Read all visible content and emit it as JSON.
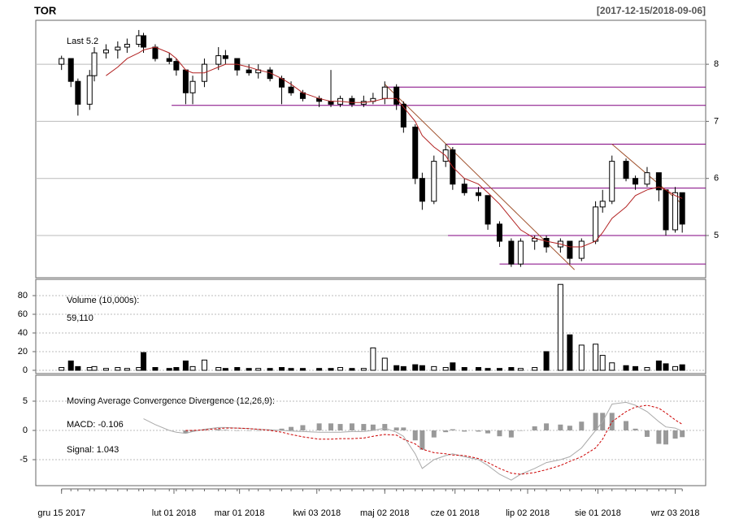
{
  "chart_data": [
    {
      "type": "candlestick",
      "title": "TOR",
      "subtitle": "[2017-12-15/2018-09-06]",
      "annotation": "Last 5.2",
      "x": [
        "2017-12-15",
        "2017-12-19",
        "2017-12-22",
        "2017-12-27",
        "2017-12-29",
        "2018-01-03",
        "2018-01-08",
        "2018-01-12",
        "2018-01-17",
        "2018-01-19",
        "2018-01-24",
        "2018-01-30",
        "2018-02-02",
        "2018-02-06",
        "2018-02-09",
        "2018-02-14",
        "2018-02-20",
        "2018-02-23",
        "2018-02-28",
        "2018-03-05",
        "2018-03-09",
        "2018-03-14",
        "2018-03-19",
        "2018-03-23",
        "2018-03-28",
        "2018-04-04",
        "2018-04-09",
        "2018-04-13",
        "2018-04-18",
        "2018-04-23",
        "2018-04-27",
        "2018-05-02",
        "2018-05-07",
        "2018-05-10",
        "2018-05-15",
        "2018-05-18",
        "2018-05-23",
        "2018-05-28",
        "2018-05-31",
        "2018-06-05",
        "2018-06-11",
        "2018-06-15",
        "2018-06-20",
        "2018-06-25",
        "2018-06-29",
        "2018-07-05",
        "2018-07-10",
        "2018-07-16",
        "2018-07-20",
        "2018-07-25",
        "2018-07-31",
        "2018-08-03",
        "2018-08-07",
        "2018-08-13",
        "2018-08-17",
        "2018-08-22",
        "2018-08-27",
        "2018-08-30",
        "2018-09-03",
        "2018-09-06"
      ],
      "open": [
        8.0,
        8.1,
        7.7,
        7.3,
        7.8,
        8.2,
        8.25,
        8.3,
        8.35,
        8.5,
        8.3,
        8.1,
        8.05,
        7.9,
        7.5,
        7.7,
        8.0,
        8.15,
        8.1,
        7.9,
        7.85,
        7.9,
        7.75,
        7.6,
        7.5,
        7.4,
        7.35,
        7.3,
        7.4,
        7.3,
        7.35,
        7.4,
        7.6,
        7.3,
        6.9,
        6.0,
        5.6,
        6.3,
        6.5,
        5.9,
        5.75,
        5.7,
        5.2,
        4.9,
        4.5,
        4.9,
        4.95,
        4.8,
        4.9,
        4.6,
        4.9,
        5.5,
        5.6,
        6.3,
        6.0,
        5.9,
        6.1,
        5.8,
        5.1,
        5.75
      ],
      "high": [
        8.15,
        8.1,
        7.75,
        7.9,
        8.3,
        8.35,
        8.4,
        8.45,
        8.6,
        8.55,
        8.35,
        8.2,
        8.1,
        7.9,
        7.8,
        8.1,
        8.3,
        8.25,
        8.1,
        8.0,
        8.0,
        7.95,
        7.8,
        7.7,
        7.55,
        7.45,
        7.9,
        7.45,
        7.45,
        7.45,
        7.5,
        7.7,
        7.65,
        7.35,
        6.95,
        6.1,
        6.4,
        6.6,
        6.55,
        6.0,
        5.85,
        5.7,
        5.25,
        4.95,
        4.95,
        5.0,
        5.0,
        4.95,
        4.9,
        4.95,
        5.6,
        5.8,
        6.4,
        6.35,
        6.05,
        6.2,
        6.1,
        5.8,
        5.85,
        5.75
      ],
      "low": [
        7.9,
        7.6,
        7.1,
        7.2,
        7.7,
        8.1,
        8.1,
        8.2,
        8.3,
        8.2,
        8.05,
        8.0,
        7.8,
        7.3,
        7.3,
        7.6,
        7.9,
        8.0,
        7.8,
        7.8,
        7.75,
        7.7,
        7.3,
        7.45,
        7.35,
        7.25,
        7.25,
        7.25,
        7.25,
        7.25,
        7.3,
        7.3,
        7.2,
        6.8,
        5.9,
        5.45,
        5.55,
        6.2,
        5.8,
        5.7,
        5.6,
        5.1,
        4.8,
        4.45,
        4.45,
        4.75,
        4.7,
        4.7,
        4.5,
        4.55,
        4.85,
        5.4,
        5.55,
        5.95,
        5.8,
        5.85,
        5.6,
        5.0,
        5.05,
        5.05
      ],
      "close": [
        8.1,
        7.7,
        7.3,
        7.8,
        8.2,
        8.25,
        8.3,
        8.35,
        8.5,
        8.3,
        8.1,
        8.05,
        7.9,
        7.5,
        7.7,
        8.0,
        8.15,
        8.1,
        7.9,
        7.85,
        7.9,
        7.75,
        7.6,
        7.5,
        7.4,
        7.35,
        7.3,
        7.4,
        7.3,
        7.35,
        7.4,
        7.6,
        7.3,
        6.9,
        6.0,
        5.6,
        6.3,
        6.5,
        5.9,
        5.75,
        5.7,
        5.2,
        4.9,
        4.5,
        4.9,
        4.95,
        4.8,
        4.9,
        4.6,
        4.9,
        5.5,
        5.6,
        6.3,
        6.0,
        5.9,
        6.1,
        5.8,
        5.1,
        5.75,
        5.2
      ],
      "up_color": "#ffffff",
      "down_color": "#000000",
      "ma": {
        "color": "#b22222",
        "values": [
          null,
          null,
          null,
          null,
          null,
          7.8,
          7.95,
          8.1,
          8.2,
          8.25,
          8.3,
          8.2,
          8.1,
          7.9,
          7.85,
          7.85,
          7.95,
          8.0,
          8.0,
          7.95,
          7.9,
          7.85,
          7.75,
          7.65,
          7.5,
          7.4,
          7.35,
          7.35,
          7.33,
          7.33,
          7.35,
          7.4,
          7.4,
          7.25,
          7.0,
          6.75,
          6.55,
          6.4,
          6.2,
          6.0,
          5.9,
          5.75,
          5.55,
          5.3,
          5.1,
          4.95,
          4.9,
          4.85,
          4.8,
          4.8,
          4.9,
          5.05,
          5.3,
          5.5,
          5.7,
          5.8,
          5.85,
          5.8,
          5.7,
          5.65
        ]
      },
      "levels": {
        "color": "#800080",
        "values": [
          7.6,
          7.28,
          6.6,
          5.83,
          5.0,
          4.5
        ],
        "from": [
          "2018-05-02",
          "2018-01-31",
          "2018-05-28",
          "2018-06-05",
          "2018-05-29",
          "2018-06-20"
        ]
      },
      "trendlines": {
        "color": "#a0522d",
        "lines": [
          {
            "x": [
              "2018-05-02",
              "2018-07-22"
            ],
            "y": [
              7.65,
              4.4
            ]
          },
          {
            "x": [
              "2018-08-07",
              "2018-09-06"
            ],
            "y": [
              6.6,
              5.55
            ]
          }
        ]
      },
      "xlim": [
        "2017-12-04",
        "2018-09-16"
      ],
      "xticks": [
        {
          "value": "2017-12-15",
          "label": "gru 15 2017"
        },
        {
          "value": "2018-02-01",
          "label": "lut 01 2018"
        },
        {
          "value": "2018-03-01",
          "label": "mar 01 2018"
        },
        {
          "value": "2018-04-03",
          "label": "kwi 03 2018"
        },
        {
          "value": "2018-05-02",
          "label": "maj 02 2018"
        },
        {
          "value": "2018-06-01",
          "label": "cze 01 2018"
        },
        {
          "value": "2018-07-02",
          "label": "lip 02 2018"
        },
        {
          "value": "2018-08-01",
          "label": "sie 01 2018"
        },
        {
          "value": "2018-09-03",
          "label": "wrz 03 2018"
        }
      ],
      "ylim": [
        4.26,
        8.77
      ],
      "yticks": [
        5,
        6,
        7,
        8
      ],
      "grid": true
    },
    {
      "type": "bar",
      "title": "Volume (10,000s):",
      "annotation": "59,110",
      "values": [
        3,
        10,
        4,
        3,
        4,
        2,
        3,
        2,
        3,
        19,
        3,
        2,
        3,
        10,
        4,
        11,
        3,
        2,
        3,
        2,
        2,
        2,
        3,
        2,
        2,
        2,
        2,
        3,
        2,
        2,
        24,
        13,
        5,
        4,
        6,
        5,
        4,
        3,
        8,
        3,
        3,
        2,
        2,
        3,
        2,
        3,
        20,
        92,
        38,
        27,
        28,
        16,
        8,
        5,
        4,
        3,
        10,
        7,
        4,
        5.911
      ],
      "ylim": [
        -3.5,
        97.4
      ],
      "yticks": [
        0,
        20,
        40,
        60,
        80
      ],
      "grid": true
    },
    {
      "type": "line",
      "title": "Moving Average Convergence Divergence (12,26,9):",
      "series": [
        {
          "name": "MACD: -0.106",
          "color": "#aaaaaa",
          "values": [
            null,
            null,
            null,
            null,
            null,
            null,
            null,
            null,
            null,
            2.0,
            1.0,
            0.0,
            -0.3,
            -0.5,
            -0.2,
            0.2,
            0.5,
            0.5,
            0.4,
            0.3,
            0.2,
            0.1,
            0.0,
            -0.1,
            -0.2,
            -0.3,
            -0.3,
            -0.3,
            -0.2,
            -0.2,
            0.0,
            0.4,
            -0.3,
            -1.0,
            -4.0,
            -6.5,
            -5.0,
            -4.3,
            -4.0,
            -4.5,
            -5.0,
            -6.0,
            -7.5,
            -8.5,
            -7.5,
            -6.5,
            -5.5,
            -5.0,
            -4.5,
            -3.0,
            0.0,
            1.5,
            4.5,
            4.8,
            4.3,
            3.2,
            1.5,
            0.6,
            0.4,
            -0.106
          ]
        },
        {
          "name": "Signal: 1.043",
          "color": "#cc0000",
          "dashed": true,
          "values": [
            null,
            null,
            null,
            null,
            null,
            null,
            null,
            null,
            null,
            null,
            null,
            null,
            null,
            0.0,
            0.0,
            0.1,
            0.3,
            0.4,
            0.4,
            0.3,
            0.2,
            0.0,
            -0.3,
            -0.7,
            -1.1,
            -1.5,
            -1.5,
            -1.4,
            -1.4,
            -1.3,
            -1.0,
            -0.7,
            -0.8,
            -1.5,
            -2.3,
            -3.2,
            -3.8,
            -4.0,
            -4.2,
            -4.3,
            -4.8,
            -5.5,
            -6.5,
            -7.3,
            -7.5,
            -7.2,
            -6.7,
            -6.0,
            -5.3,
            -4.5,
            -3.0,
            -1.5,
            1.5,
            3.2,
            4.0,
            4.3,
            3.8,
            3.0,
            1.8,
            1.043
          ]
        }
      ],
      "histogram": {
        "color": "#999999",
        "values": [
          null,
          null,
          null,
          null,
          null,
          null,
          null,
          null,
          null,
          null,
          null,
          null,
          null,
          -0.5,
          -0.2,
          0.1,
          0.2,
          0.1,
          0.0,
          0.0,
          0.0,
          0.1,
          0.3,
          0.6,
          0.9,
          1.2,
          1.2,
          1.1,
          1.2,
          1.1,
          1.0,
          1.1,
          0.5,
          0.5,
          -1.7,
          -3.3,
          -1.2,
          -0.3,
          0.2,
          -0.2,
          -0.2,
          -0.5,
          -1.0,
          -1.2,
          0.0,
          0.7,
          1.2,
          1.0,
          0.8,
          1.5,
          3.0,
          3.0,
          3.0,
          1.6,
          0.3,
          -1.1,
          -2.3,
          -2.4,
          -1.4,
          -1.149
        ]
      },
      "ylim": [
        -9.44,
        9.44
      ],
      "yticks": [
        -5,
        0,
        5
      ],
      "grid": true
    }
  ]
}
